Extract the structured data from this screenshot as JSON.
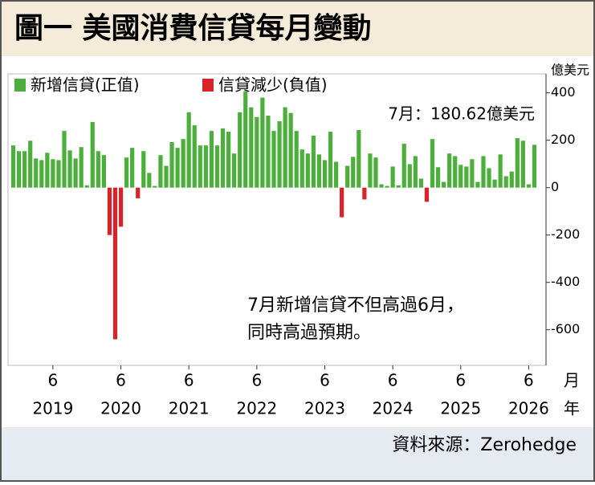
{
  "chart_data": {
    "type": "bar",
    "title": "圖一  美國消費信貸每月變動",
    "ylabel": "億美元",
    "xlabel": [
      "月",
      "年"
    ],
    "annotation": "7月：180.62億美元",
    "note": [
      "7月新增信貸不但高過6月，",
      "同時高過預期。"
    ],
    "source": "資料來源：Zerohedge",
    "categories": [
      null,
      null,
      null,
      null,
      null,
      null,
      null,
      "6",
      null,
      null,
      null,
      null,
      null,
      null,
      null,
      null,
      null,
      null,
      null,
      "6",
      null,
      null,
      null,
      null,
      null,
      null,
      null,
      null,
      null,
      null,
      null,
      "6",
      null,
      null,
      null,
      null,
      null,
      null,
      null,
      null,
      null,
      null,
      null,
      "6",
      null,
      null,
      null,
      null,
      null,
      null,
      null,
      null,
      null,
      null,
      null,
      "6",
      null,
      null,
      null,
      null,
      null,
      null,
      null,
      null,
      null,
      null,
      null,
      "6",
      null,
      null,
      null,
      null,
      null,
      null,
      null,
      null,
      null,
      null,
      null,
      "6",
      null,
      null,
      null,
      null,
      null,
      null,
      null,
      null,
      null,
      null,
      null,
      "6",
      null
    ],
    "category_years": [
      null,
      null,
      null,
      null,
      null,
      null,
      null,
      "2019",
      null,
      null,
      null,
      null,
      null,
      null,
      null,
      null,
      null,
      null,
      null,
      "2020",
      null,
      null,
      null,
      null,
      null,
      null,
      null,
      null,
      null,
      null,
      null,
      "2021",
      null,
      null,
      null,
      null,
      null,
      null,
      null,
      null,
      null,
      null,
      null,
      "2022",
      null,
      null,
      null,
      null,
      null,
      null,
      null,
      null,
      null,
      null,
      null,
      "2023",
      null,
      null,
      null,
      null,
      null,
      null,
      null,
      null,
      null,
      null,
      null,
      "2024",
      null,
      null,
      null,
      null,
      null,
      null,
      null,
      null,
      null,
      null,
      null,
      "2025",
      null,
      null,
      null,
      null,
      null,
      null,
      null,
      null,
      null,
      null,
      null,
      "2026",
      null
    ],
    "series": [
      {
        "name": "新增信貸(正值)",
        "color": "#4caf3c",
        "values": [
          178,
          154,
          154,
          198,
          123,
          116,
          147,
          120,
          116,
          239,
          157,
          123,
          171,
          10,
          277,
          154,
          137,
          null,
          null,
          null,
          127,
          168,
          null,
          154,
          62,
          7,
          137,
          92,
          192,
          168,
          205,
          318,
          263,
          178,
          178,
          239,
          178,
          250,
          236,
          144,
          318,
          407,
          339,
          298,
          380,
          304,
          239,
          280,
          339,
          315,
          239,
          161,
          144,
          219,
          140,
          116,
          236,
          109,
          null,
          92,
          130,
          243,
          null,
          144,
          127,
          14,
          7,
          89,
          10,
          185,
          99,
          133,
          38,
          null,
          205,
          86,
          24,
          144,
          133,
          96,
          89,
          120,
          24,
          133,
          82,
          34,
          140,
          48,
          68,
          209,
          198,
          14,
          180.62
        ]
      },
      {
        "name": "信貸減少(負值)",
        "color": "#d8232a",
        "values": [
          null,
          null,
          null,
          null,
          null,
          null,
          null,
          null,
          null,
          null,
          null,
          null,
          null,
          null,
          null,
          null,
          null,
          -200,
          -640,
          -165,
          null,
          null,
          -45,
          null,
          null,
          null,
          null,
          null,
          null,
          null,
          null,
          null,
          null,
          null,
          null,
          null,
          null,
          null,
          null,
          null,
          null,
          null,
          null,
          null,
          null,
          null,
          null,
          null,
          null,
          null,
          null,
          null,
          null,
          null,
          null,
          null,
          null,
          null,
          -125,
          null,
          null,
          null,
          -50,
          null,
          null,
          null,
          null,
          null,
          null,
          null,
          null,
          null,
          null,
          -60,
          null,
          null,
          null,
          null,
          null,
          null,
          null,
          null,
          null,
          null,
          null,
          null,
          null,
          null,
          null,
          null,
          null,
          null,
          null
        ]
      }
    ],
    "ylim": [
      -750,
      480
    ],
    "yticks": [
      400,
      200,
      0,
      -200,
      -400,
      -600
    ]
  }
}
